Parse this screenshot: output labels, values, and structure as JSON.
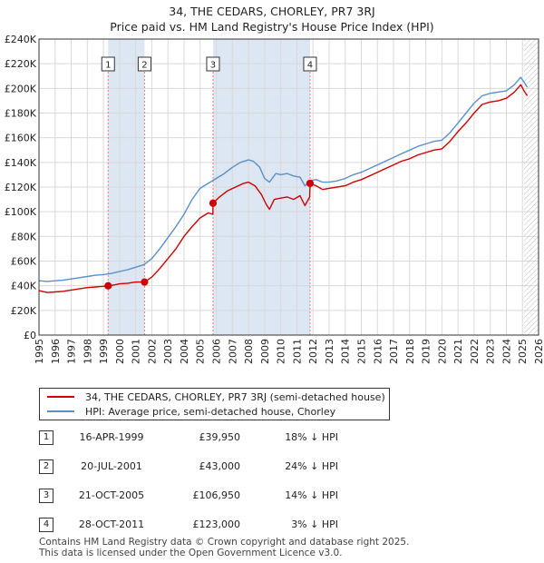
{
  "title": "34, THE CEDARS, CHORLEY, PR7 3RJ",
  "subtitle": "Price paid vs. HM Land Registry's House Price Index (HPI)",
  "colors": {
    "property": "#cc0000",
    "hpi": "#5b8fc9",
    "shade": "#dde6f3",
    "marker_line": "#e08080"
  },
  "legend": {
    "property": "34, THE CEDARS, CHORLEY, PR7 3RJ (semi-detached house)",
    "hpi": "HPI: Average price, semi-detached house, Chorley"
  },
  "sales": [
    {
      "num": "1",
      "date": "16-APR-1999",
      "price": "£39,950",
      "hpi": "18% ↓ HPI"
    },
    {
      "num": "2",
      "date": "20-JUL-2001",
      "price": "£43,000",
      "hpi": "24% ↓ HPI"
    },
    {
      "num": "3",
      "date": "21-OCT-2005",
      "price": "£106,950",
      "hpi": "14% ↓ HPI"
    },
    {
      "num": "4",
      "date": "28-OCT-2011",
      "price": "£123,000",
      "hpi": "3% ↓ HPI"
    }
  ],
  "footer": {
    "line1": "Contains HM Land Registry data © Crown copyright and database right 2025.",
    "line2": "This data is licensed under the Open Government Licence v3.0."
  },
  "chart_data": {
    "type": "line",
    "xlim": [
      1995,
      2026
    ],
    "ylim": [
      0,
      240000
    ],
    "x_ticks": [
      "1995",
      "1996",
      "1997",
      "1998",
      "1999",
      "2000",
      "2001",
      "2002",
      "2003",
      "2004",
      "2005",
      "2006",
      "2007",
      "2008",
      "2009",
      "2010",
      "2011",
      "2012",
      "2013",
      "2014",
      "2015",
      "2016",
      "2017",
      "2018",
      "2019",
      "2020",
      "2021",
      "2022",
      "2023",
      "2024",
      "2025",
      "2026"
    ],
    "y_ticks": [
      {
        "value": 0,
        "label": "£0"
      },
      {
        "value": 20000,
        "label": "£20K"
      },
      {
        "value": 40000,
        "label": "£40K"
      },
      {
        "value": 60000,
        "label": "£60K"
      },
      {
        "value": 80000,
        "label": "£80K"
      },
      {
        "value": 100000,
        "label": "£100K"
      },
      {
        "value": 120000,
        "label": "£120K"
      },
      {
        "value": 140000,
        "label": "£140K"
      },
      {
        "value": 160000,
        "label": "£160K"
      },
      {
        "value": 180000,
        "label": "£180K"
      },
      {
        "value": 200000,
        "label": "£200K"
      },
      {
        "value": 220000,
        "label": "£220K"
      },
      {
        "value": 240000,
        "label": "£240K"
      }
    ],
    "grid": true,
    "shaded_ranges": [
      [
        1999.29,
        2001.55
      ],
      [
        2005.8,
        2011.82
      ]
    ],
    "sale_markers": [
      {
        "label": "1",
        "x": 1999.29,
        "y": 39950
      },
      {
        "label": "2",
        "x": 2001.55,
        "y": 43000
      },
      {
        "label": "3",
        "x": 2005.8,
        "y": 106950
      },
      {
        "label": "4",
        "x": 2011.82,
        "y": 123000
      }
    ],
    "forecast_from": 2025.1,
    "series": [
      {
        "name": "34, THE CEDARS, CHORLEY, PR7 3RJ (semi-detached house)",
        "key": "property",
        "points": [
          [
            1995.0,
            36000
          ],
          [
            1995.5,
            34500
          ],
          [
            1996.0,
            35000
          ],
          [
            1996.5,
            35500
          ],
          [
            1997.0,
            36500
          ],
          [
            1997.5,
            37500
          ],
          [
            1998.0,
            38500
          ],
          [
            1998.5,
            39000
          ],
          [
            1999.0,
            39500
          ],
          [
            1999.29,
            39950
          ],
          [
            1999.6,
            40500
          ],
          [
            2000.0,
            41500
          ],
          [
            2000.5,
            42000
          ],
          [
            2001.0,
            43000
          ],
          [
            2001.55,
            43000
          ],
          [
            2002.0,
            47000
          ],
          [
            2002.5,
            54000
          ],
          [
            2003.0,
            62000
          ],
          [
            2003.5,
            70000
          ],
          [
            2004.0,
            80000
          ],
          [
            2004.5,
            88000
          ],
          [
            2005.0,
            95000
          ],
          [
            2005.5,
            99000
          ],
          [
            2005.79,
            98000
          ],
          [
            2005.8,
            106950
          ],
          [
            2006.2,
            112000
          ],
          [
            2006.7,
            117000
          ],
          [
            2007.2,
            120000
          ],
          [
            2007.7,
            123000
          ],
          [
            2008.0,
            124000
          ],
          [
            2008.4,
            121000
          ],
          [
            2008.8,
            114000
          ],
          [
            2009.1,
            106000
          ],
          [
            2009.3,
            102000
          ],
          [
            2009.6,
            110000
          ],
          [
            2010.0,
            111000
          ],
          [
            2010.4,
            112000
          ],
          [
            2010.8,
            110000
          ],
          [
            2011.2,
            113000
          ],
          [
            2011.5,
            105000
          ],
          [
            2011.8,
            112000
          ],
          [
            2011.82,
            123000
          ],
          [
            2012.2,
            121000
          ],
          [
            2012.6,
            118000
          ],
          [
            2013.0,
            119000
          ],
          [
            2013.5,
            120000
          ],
          [
            2014.0,
            121000
          ],
          [
            2014.5,
            124000
          ],
          [
            2015.0,
            126000
          ],
          [
            2015.5,
            129000
          ],
          [
            2016.0,
            132000
          ],
          [
            2016.5,
            135000
          ],
          [
            2017.0,
            138000
          ],
          [
            2017.5,
            141000
          ],
          [
            2018.0,
            143000
          ],
          [
            2018.5,
            146000
          ],
          [
            2019.0,
            148000
          ],
          [
            2019.5,
            150000
          ],
          [
            2020.0,
            151000
          ],
          [
            2020.5,
            157000
          ],
          [
            2021.0,
            165000
          ],
          [
            2021.5,
            172000
          ],
          [
            2022.0,
            180000
          ],
          [
            2022.5,
            187000
          ],
          [
            2023.0,
            189000
          ],
          [
            2023.5,
            190000
          ],
          [
            2024.0,
            192000
          ],
          [
            2024.5,
            197000
          ],
          [
            2024.9,
            203000
          ],
          [
            2025.1,
            198000
          ],
          [
            2025.3,
            194000
          ]
        ]
      },
      {
        "name": "HPI: Average price, semi-detached house, Chorley",
        "key": "hpi",
        "points": [
          [
            1995.0,
            44000
          ],
          [
            1995.5,
            43500
          ],
          [
            1996.0,
            44000
          ],
          [
            1996.5,
            44500
          ],
          [
            1997.0,
            45500
          ],
          [
            1997.5,
            46500
          ],
          [
            1998.0,
            47500
          ],
          [
            1998.5,
            48500
          ],
          [
            1999.0,
            49000
          ],
          [
            1999.5,
            50000
          ],
          [
            2000.0,
            51500
          ],
          [
            2000.5,
            53000
          ],
          [
            2001.0,
            55000
          ],
          [
            2001.5,
            57000
          ],
          [
            2002.0,
            62000
          ],
          [
            2002.5,
            70000
          ],
          [
            2003.0,
            79000
          ],
          [
            2003.5,
            88000
          ],
          [
            2004.0,
            98000
          ],
          [
            2004.5,
            110000
          ],
          [
            2005.0,
            119000
          ],
          [
            2005.5,
            123000
          ],
          [
            2006.0,
            127000
          ],
          [
            2006.5,
            131000
          ],
          [
            2007.0,
            136000
          ],
          [
            2007.5,
            140000
          ],
          [
            2008.0,
            142000
          ],
          [
            2008.3,
            141000
          ],
          [
            2008.7,
            136000
          ],
          [
            2009.0,
            127000
          ],
          [
            2009.3,
            124000
          ],
          [
            2009.7,
            131000
          ],
          [
            2010.0,
            130000
          ],
          [
            2010.4,
            131000
          ],
          [
            2010.8,
            129000
          ],
          [
            2011.2,
            128000
          ],
          [
            2011.5,
            121000
          ],
          [
            2011.8,
            125000
          ],
          [
            2012.2,
            126000
          ],
          [
            2012.6,
            124000
          ],
          [
            2013.0,
            124000
          ],
          [
            2013.5,
            125000
          ],
          [
            2014.0,
            127000
          ],
          [
            2014.5,
            130000
          ],
          [
            2015.0,
            132000
          ],
          [
            2015.5,
            135000
          ],
          [
            2016.0,
            138000
          ],
          [
            2016.5,
            141000
          ],
          [
            2017.0,
            144000
          ],
          [
            2017.5,
            147000
          ],
          [
            2018.0,
            150000
          ],
          [
            2018.5,
            153000
          ],
          [
            2019.0,
            155000
          ],
          [
            2019.5,
            157000
          ],
          [
            2020.0,
            158000
          ],
          [
            2020.5,
            164000
          ],
          [
            2021.0,
            172000
          ],
          [
            2021.5,
            180000
          ],
          [
            2022.0,
            188000
          ],
          [
            2022.5,
            194000
          ],
          [
            2023.0,
            196000
          ],
          [
            2023.5,
            197000
          ],
          [
            2024.0,
            198000
          ],
          [
            2024.5,
            203000
          ],
          [
            2024.9,
            209000
          ],
          [
            2025.1,
            205000
          ],
          [
            2025.3,
            201000
          ]
        ]
      }
    ]
  }
}
